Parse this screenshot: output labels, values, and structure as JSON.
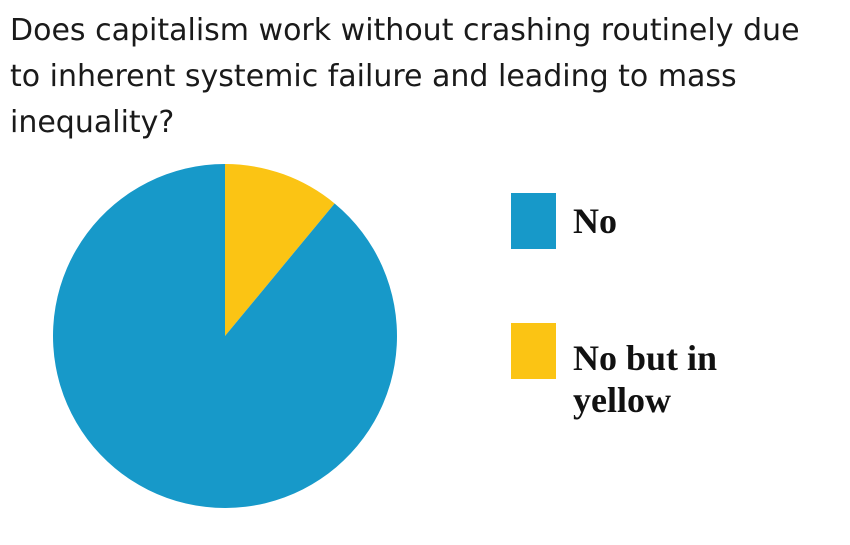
{
  "chart_data": {
    "type": "pie",
    "title": "Does capitalism work without crashing routinely due to inherent systemic failure and leading to mass inequality?",
    "slices": [
      {
        "label": "No",
        "value": 89,
        "color": "#1799c9"
      },
      {
        "label": "No but in yellow",
        "value": 11,
        "color": "#fbc414"
      }
    ],
    "legend_position": "right"
  }
}
